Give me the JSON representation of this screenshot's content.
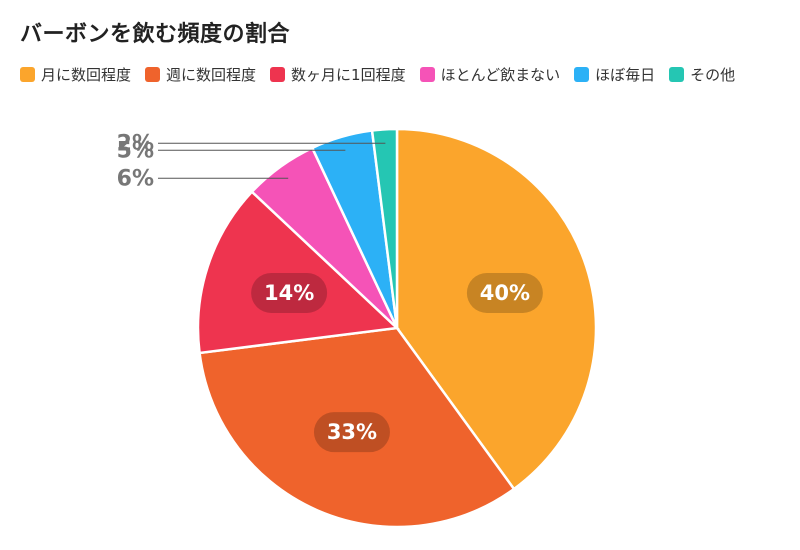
{
  "chart_data": {
    "type": "pie",
    "title": "バーボンを飲む頻度の割合",
    "legend_position": "top-left",
    "slices": [
      {
        "label": "月に数回程度",
        "value": 40,
        "display": "40%",
        "color": "#FBA52C"
      },
      {
        "label": "週に数回程度",
        "value": 33,
        "display": "33%",
        "color": "#EF632C"
      },
      {
        "label": "数ヶ月に1回程度",
        "value": 14,
        "display": "14%",
        "color": "#EE344F"
      },
      {
        "label": "ほとんど飲まない",
        "value": 6,
        "display": "6%",
        "color": "#F553B7"
      },
      {
        "label": "ほぼ毎日",
        "value": 5,
        "display": "5%",
        "color": "#2CB1F6"
      },
      {
        "label": "その他",
        "value": 2,
        "display": "2%",
        "color": "#25C6B3"
      }
    ]
  }
}
